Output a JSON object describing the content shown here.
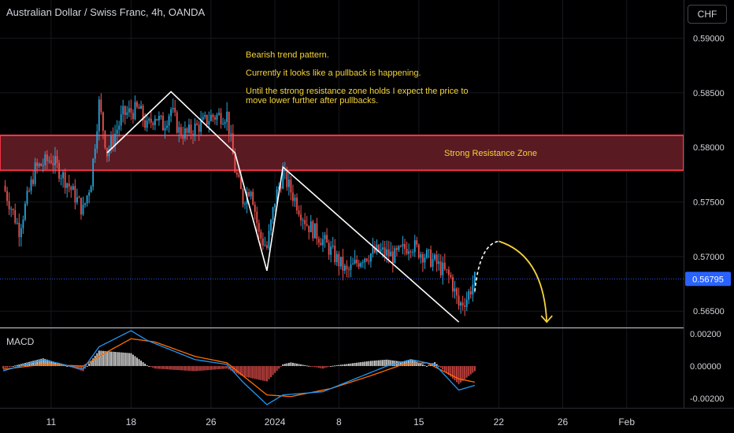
{
  "header": {
    "title": "Australian Dollar / Swiss Franc, 4h, OANDA",
    "currency_button": "CHF"
  },
  "annotations": {
    "note_line1": "Bearish trend pattern.",
    "note_line2": "Currently it looks like a pullback is happening.",
    "note_line3": "Until the strong resistance zone holds I expect the price to move lower further after pullbacks.",
    "zone_label": "Strong Resistance Zone"
  },
  "colors": {
    "background": "#000000",
    "up_candle": "#26a7df",
    "down_candle": "#ef5350",
    "zone_border": "#f23645",
    "zone_fill": "#5a1a22",
    "note_text": "#f5d33b",
    "curve": "#f5d33b",
    "price_tag": "#2962ff",
    "grid": "#16181e",
    "macd_line": "#2196f3",
    "signal_line": "#ff6d00"
  },
  "chart_data": {
    "type": "candlestick",
    "symbol": "AUDCHF",
    "timeframe": "4h",
    "price_axis": {
      "ticks": [
        "0.59000",
        "0.58500",
        "0.58000",
        "0.57500",
        "0.57000",
        "0.56500"
      ],
      "range": [
        0.5635,
        0.5935
      ],
      "current_price": "0.56795"
    },
    "time_axis": {
      "labels": [
        "11",
        "18",
        "26",
        "2024",
        "8",
        "15",
        "22",
        "26",
        "Feb"
      ],
      "label_index": [
        6,
        16,
        26,
        34,
        42,
        52,
        62,
        70,
        78
      ]
    },
    "resistance_zone": {
      "low": 0.5779,
      "high": 0.5811,
      "label": "Strong Resistance Zone"
    },
    "trend_lines": [
      {
        "points": [
          [
            13,
            0.5795
          ],
          [
            21,
            0.5851
          ],
          [
            29,
            0.5795
          ],
          [
            33,
            0.5687
          ],
          [
            35,
            0.5782
          ],
          [
            57,
            0.564
          ]
        ]
      }
    ],
    "projection": {
      "pullback_points": [
        [
          59,
          0.5668
        ],
        [
          62,
          0.5714
        ]
      ],
      "target_points": [
        [
          62,
          0.5714
        ],
        [
          68,
          0.564
        ]
      ]
    },
    "price_series": {
      "name": "AUDCHF",
      "anchors": [
        [
          0,
          0.5765
        ],
        [
          2,
          0.5725
        ],
        [
          4,
          0.578
        ],
        [
          6,
          0.579
        ],
        [
          8,
          0.5768
        ],
        [
          10,
          0.5742
        ],
        [
          11,
          0.577
        ],
        [
          12,
          0.584
        ],
        [
          13,
          0.5795
        ],
        [
          15,
          0.583
        ],
        [
          17,
          0.5835
        ],
        [
          18,
          0.5818
        ],
        [
          19,
          0.583
        ],
        [
          20,
          0.582
        ],
        [
          21,
          0.5835
        ],
        [
          22,
          0.5815
        ],
        [
          23,
          0.5812
        ],
        [
          24,
          0.5818
        ],
        [
          25,
          0.5822
        ],
        [
          26,
          0.5828
        ],
        [
          28,
          0.583
        ],
        [
          29,
          0.578
        ],
        [
          30,
          0.5752
        ],
        [
          31,
          0.5765
        ],
        [
          32,
          0.572
        ],
        [
          33,
          0.5708
        ],
        [
          34,
          0.5752
        ],
        [
          35,
          0.5776
        ],
        [
          36,
          0.576
        ],
        [
          38,
          0.573
        ],
        [
          40,
          0.5715
        ],
        [
          42,
          0.5695
        ],
        [
          43,
          0.5685
        ],
        [
          45,
          0.57
        ],
        [
          47,
          0.5705
        ],
        [
          49,
          0.57
        ],
        [
          51,
          0.5712
        ],
        [
          52,
          0.5705
        ],
        [
          54,
          0.5695
        ],
        [
          56,
          0.568
        ],
        [
          57,
          0.5655
        ],
        [
          58,
          0.5662
        ],
        [
          59,
          0.5679
        ]
      ]
    },
    "macd": {
      "label": "MACD",
      "ticks": [
        "0.00200",
        "0.00000",
        "-0.00200"
      ],
      "range": [
        -0.0026,
        0.0023
      ],
      "macd_anchors": [
        [
          0,
          -0.0003
        ],
        [
          5,
          0.0004
        ],
        [
          10,
          -0.0002
        ],
        [
          12,
          0.0012
        ],
        [
          16,
          0.0022
        ],
        [
          18,
          0.0016
        ],
        [
          24,
          0.0004
        ],
        [
          28,
          0.0001
        ],
        [
          30,
          -0.001
        ],
        [
          33,
          -0.0024
        ],
        [
          35,
          -0.0018
        ],
        [
          40,
          -0.0016
        ],
        [
          45,
          -0.0006
        ],
        [
          48,
          0.0
        ],
        [
          51,
          0.0004
        ],
        [
          54,
          0.0001
        ],
        [
          57,
          -0.0015
        ],
        [
          59,
          -0.0012
        ]
      ],
      "signal_anchors": [
        [
          0,
          -0.0002
        ],
        [
          5,
          0.0001
        ],
        [
          10,
          0.0
        ],
        [
          12,
          0.0006
        ],
        [
          16,
          0.0017
        ],
        [
          19,
          0.0015
        ],
        [
          24,
          0.0006
        ],
        [
          28,
          0.0002
        ],
        [
          30,
          -0.0006
        ],
        [
          33,
          -0.0018
        ],
        [
          36,
          -0.0019
        ],
        [
          41,
          -0.0014
        ],
        [
          46,
          -0.0006
        ],
        [
          50,
          0.0001
        ],
        [
          53,
          0.0002
        ],
        [
          57,
          -0.0008
        ],
        [
          59,
          -0.001
        ]
      ]
    }
  }
}
